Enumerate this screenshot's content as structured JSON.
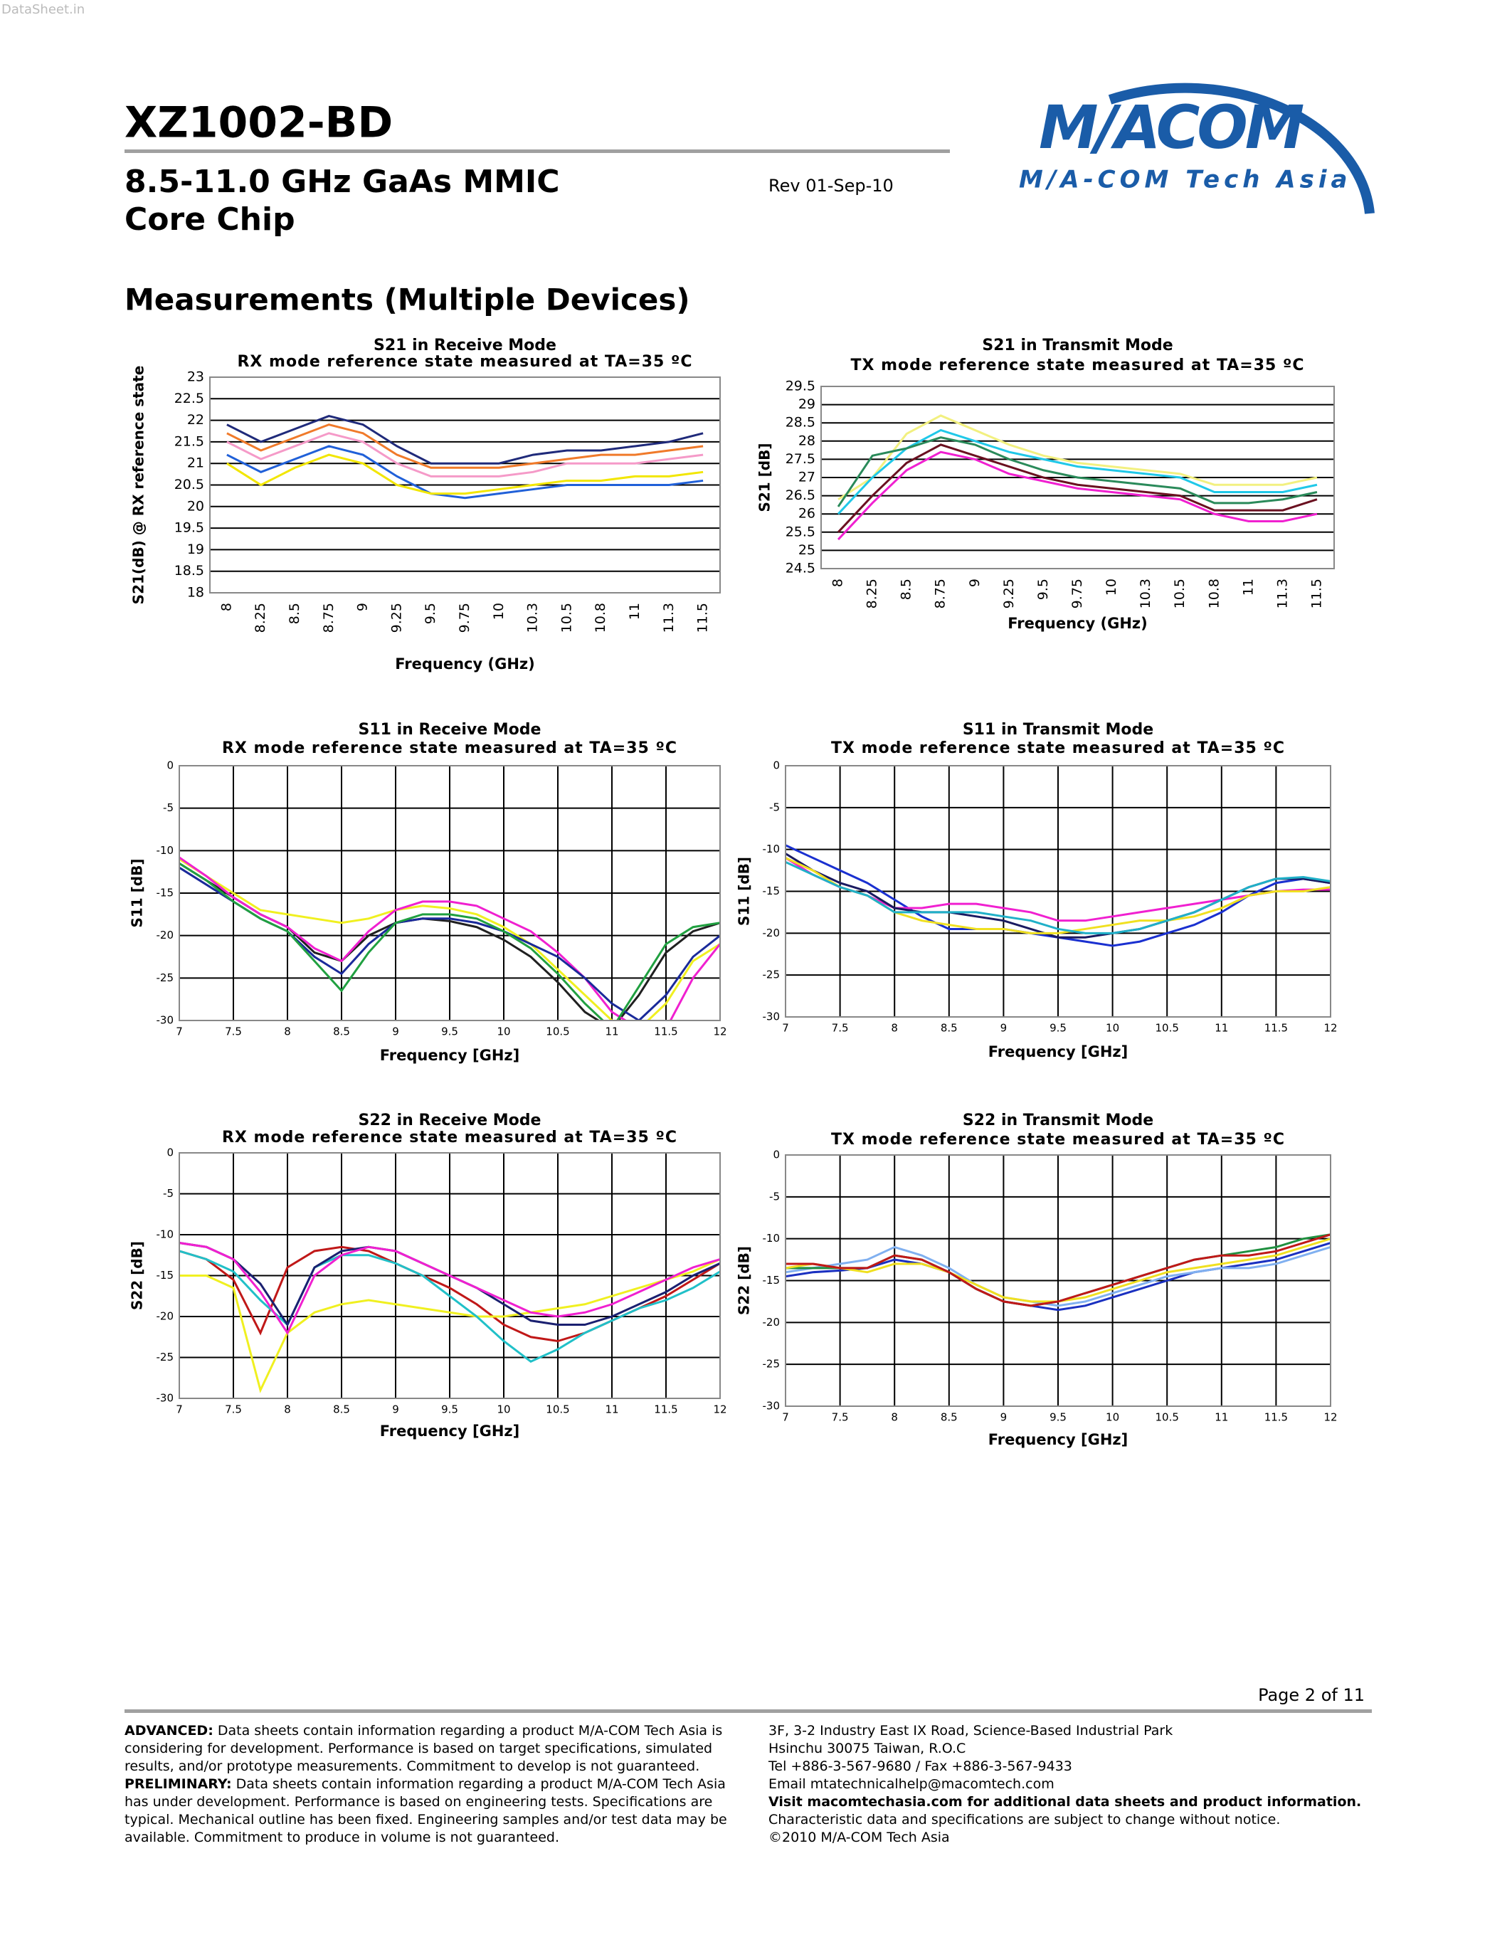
{
  "header": {
    "watermark": "DataSheet.in",
    "part_number": "XZ1002-BD",
    "subtitle_line1": "8.5-11.0 GHz GaAs MMIC",
    "subtitle_line2": "Core Chip",
    "revision": "Rev 01-Sep-10",
    "logo": "M/ACOM",
    "logo_subtitle": "M/A-COM Tech Asia"
  },
  "section_title": "Measurements (Multiple Devices)",
  "chart_data": [
    {
      "type": "line",
      "title": "S21 in Receive Mode",
      "subtitle": "RX mode reference state measured at TA=35 ºC",
      "y_label": "S21(dB) @ RX reference state",
      "x_label": "Frequency (GHz)",
      "categories": [
        "8",
        "8.25",
        "8.5",
        "8.75",
        "9",
        "9.25",
        "9.5",
        "9.75",
        "10",
        "10.3",
        "10.5",
        "10.8",
        "11",
        "11.3",
        "11.5"
      ],
      "ylim": [
        18,
        23
      ],
      "yticks": [
        18,
        18.5,
        19,
        19.5,
        20,
        20.5,
        21,
        21.5,
        22,
        22.5,
        23
      ],
      "grid": "y",
      "series": [
        {
          "color": "#1f2a7a",
          "values": [
            21.9,
            21.5,
            21.8,
            22.1,
            21.9,
            21.4,
            21.0,
            21.0,
            21.0,
            21.2,
            21.3,
            21.3,
            21.4,
            21.5,
            21.7
          ]
        },
        {
          "color": "#f07a2a",
          "values": [
            21.7,
            21.3,
            21.6,
            21.9,
            21.7,
            21.2,
            20.9,
            20.9,
            20.9,
            21.0,
            21.1,
            21.2,
            21.2,
            21.3,
            21.4
          ]
        },
        {
          "color": "#f59ac8",
          "values": [
            21.5,
            21.1,
            21.4,
            21.7,
            21.5,
            21.0,
            20.7,
            20.7,
            20.7,
            20.8,
            21.0,
            21.0,
            21.0,
            21.1,
            21.2
          ]
        },
        {
          "color": "#2060d8",
          "values": [
            21.2,
            20.8,
            21.1,
            21.4,
            21.2,
            20.7,
            20.3,
            20.2,
            20.3,
            20.4,
            20.5,
            20.5,
            20.5,
            20.5,
            20.6
          ]
        },
        {
          "color": "#f2e600",
          "values": [
            21.0,
            20.5,
            20.9,
            21.2,
            21.0,
            20.5,
            20.3,
            20.3,
            20.4,
            20.5,
            20.6,
            20.6,
            20.7,
            20.7,
            20.8
          ]
        }
      ]
    },
    {
      "type": "line",
      "title": "S21 in Transmit Mode",
      "subtitle": "TX mode reference state measured at TA=35 ºC",
      "y_label": "S21 [dB]",
      "x_label": "Frequency (GHz)",
      "categories": [
        "8",
        "8.25",
        "8.5",
        "8.75",
        "9",
        "9.25",
        "9.5",
        "9.75",
        "10",
        "10.3",
        "10.5",
        "10.8",
        "11",
        "11.3",
        "11.5"
      ],
      "ylim": [
        24.5,
        29.5
      ],
      "yticks": [
        24.5,
        25,
        25.5,
        26,
        26.5,
        27,
        27.5,
        28,
        28.5,
        29,
        29.5
      ],
      "grid": "y",
      "series": [
        {
          "color": "#f2f080",
          "values": [
            26.4,
            27.0,
            28.2,
            28.7,
            28.3,
            27.9,
            27.6,
            27.4,
            27.3,
            27.2,
            27.1,
            26.8,
            26.8,
            26.8,
            27.0
          ]
        },
        {
          "color": "#20c8e8",
          "values": [
            26.0,
            27.0,
            27.8,
            28.3,
            28.0,
            27.7,
            27.5,
            27.3,
            27.2,
            27.1,
            27.0,
            26.6,
            26.6,
            26.6,
            26.8
          ]
        },
        {
          "color": "#2a8a5a",
          "values": [
            26.2,
            27.6,
            27.8,
            28.1,
            27.9,
            27.5,
            27.2,
            27.0,
            26.9,
            26.8,
            26.7,
            26.3,
            26.3,
            26.4,
            26.6
          ]
        },
        {
          "color": "#6a1020",
          "values": [
            25.5,
            26.5,
            27.4,
            27.9,
            27.6,
            27.3,
            27.0,
            26.8,
            26.7,
            26.6,
            26.5,
            26.1,
            26.1,
            26.1,
            26.4
          ]
        },
        {
          "color": "#f020d0",
          "values": [
            25.3,
            26.3,
            27.2,
            27.7,
            27.5,
            27.1,
            26.9,
            26.7,
            26.6,
            26.5,
            26.4,
            26.0,
            25.8,
            25.8,
            26.0
          ]
        }
      ]
    },
    {
      "type": "line",
      "title": "S11 in Receive Mode",
      "subtitle": "RX mode reference state measured at TA=35 ºC",
      "y_label": "S11 [dB]",
      "x_label": "Frequency [GHz]",
      "x": [
        7,
        7.25,
        7.5,
        7.75,
        8,
        8.25,
        8.5,
        8.75,
        9,
        9.25,
        9.5,
        9.75,
        10,
        10.25,
        10.5,
        10.75,
        11,
        11.25,
        11.5,
        11.75,
        12
      ],
      "xlim": [
        7,
        12
      ],
      "xticks": [
        7,
        7.5,
        8,
        8.5,
        9,
        9.5,
        10,
        10.5,
        11,
        11.5,
        12
      ],
      "ylim": [
        -30,
        0
      ],
      "yticks": [
        0,
        -5,
        -10,
        -15,
        -20,
        -25,
        -30
      ],
      "grid": "both",
      "series": [
        {
          "color": "#202020",
          "values": [
            -11.5,
            -13.5,
            -15.5,
            -17.5,
            -19,
            -22,
            -23,
            -20,
            -18.5,
            -18,
            -18.3,
            -19,
            -20.5,
            -22.5,
            -25.5,
            -29,
            -31,
            -27,
            -22,
            -19.5,
            -18.5
          ]
        },
        {
          "color": "#f0f020",
          "values": [
            -11,
            -13,
            -15,
            -17,
            -17.5,
            -18,
            -18.5,
            -18,
            -17,
            -16.5,
            -16.8,
            -17.5,
            -19,
            -21,
            -24,
            -27,
            -30,
            -31,
            -28,
            -23,
            -21
          ]
        },
        {
          "color": "#f020d0",
          "values": [
            -10.8,
            -13,
            -15.5,
            -17.5,
            -19,
            -21.5,
            -23,
            -19.5,
            -17,
            -16,
            -16,
            -16.5,
            -18,
            -19.5,
            -22,
            -25,
            -29,
            -31,
            -31,
            -25,
            -21
          ]
        },
        {
          "color": "#1a2a9a",
          "values": [
            -12,
            -14,
            -16,
            -18,
            -19.5,
            -22.5,
            -24.5,
            -21,
            -18.5,
            -18,
            -18,
            -18.5,
            -19.5,
            -21,
            -22.5,
            -25,
            -28,
            -30,
            -27,
            -22.5,
            -20
          ]
        },
        {
          "color": "#20a040",
          "values": [
            -11.5,
            -13.5,
            -16,
            -18,
            -19.5,
            -23,
            -26.5,
            -22,
            -18.5,
            -17.5,
            -17.5,
            -18,
            -19.5,
            -21.5,
            -24.5,
            -28,
            -31,
            -26,
            -21,
            -19,
            -18.5
          ]
        }
      ]
    },
    {
      "type": "line",
      "title": "S11 in Transmit Mode",
      "subtitle": "TX mode reference state measured at TA=35 ºC",
      "y_label": "S11 [dB]",
      "x_label": "Frequency [GHz]",
      "x": [
        7,
        7.25,
        7.5,
        7.75,
        8,
        8.25,
        8.5,
        8.75,
        9,
        9.25,
        9.5,
        9.75,
        10,
        10.25,
        10.5,
        10.75,
        11,
        11.25,
        11.5,
        11.75,
        12
      ],
      "xlim": [
        7,
        12
      ],
      "xticks": [
        7,
        7.5,
        8,
        8.5,
        9,
        9.5,
        10,
        10.5,
        11,
        11.5,
        12
      ],
      "ylim": [
        -30,
        0
      ],
      "yticks": [
        0,
        -5,
        -10,
        -15,
        -20,
        -25,
        -30
      ],
      "grid": "both",
      "series": [
        {
          "color": "#1a30d0",
          "values": [
            -9.5,
            -11,
            -12.5,
            -14,
            -16,
            -18,
            -19.5,
            -19.5,
            -19.5,
            -20,
            -20.5,
            -21,
            -21.5,
            -21,
            -20,
            -19,
            -17.5,
            -15.5,
            -14,
            -13.5,
            -14
          ]
        },
        {
          "color": "#f020d0",
          "values": [
            -11,
            -13,
            -14.5,
            -15.5,
            -17,
            -17,
            -16.5,
            -16.5,
            -17,
            -17.5,
            -18.5,
            -18.5,
            -18,
            -17.5,
            -17,
            -16.5,
            -16,
            -15.5,
            -15,
            -14.8,
            -14.8
          ]
        },
        {
          "color": "#1a1a60",
          "values": [
            -10.5,
            -12.5,
            -14,
            -15,
            -17,
            -17.5,
            -17.5,
            -18,
            -18.5,
            -19.5,
            -20.5,
            -20.5,
            -20,
            -19.5,
            -18.5,
            -17.5,
            -16,
            -14.5,
            -13.5,
            -13.5,
            -14
          ]
        },
        {
          "color": "#f0e020",
          "values": [
            -11,
            -12.5,
            -14.5,
            -15.5,
            -17.5,
            -18.5,
            -19,
            -19.5,
            -19.5,
            -20,
            -20,
            -19.5,
            -19,
            -18.5,
            -18.5,
            -18,
            -17,
            -15.5,
            -15,
            -15,
            -14.5
          ]
        },
        {
          "color": "#20b0c8",
          "values": [
            -11.5,
            -13,
            -14.5,
            -15.5,
            -17.5,
            -17.5,
            -17.5,
            -17.5,
            -18,
            -18.5,
            -19.5,
            -20,
            -20,
            -19.5,
            -18.5,
            -17.5,
            -16,
            -14.5,
            -13.5,
            -13.3,
            -13.8
          ]
        }
      ]
    },
    {
      "type": "line",
      "title": "S22 in Receive Mode",
      "subtitle": "RX mode reference state measured at TA=35 ºC",
      "y_label": "S22 [dB]",
      "x_label": "Frequency [GHz]",
      "x": [
        7,
        7.25,
        7.5,
        7.75,
        8,
        8.25,
        8.5,
        8.75,
        9,
        9.25,
        9.5,
        9.75,
        10,
        10.25,
        10.5,
        10.75,
        11,
        11.25,
        11.5,
        11.75,
        12
      ],
      "xlim": [
        7,
        12
      ],
      "xticks": [
        7,
        7.5,
        8,
        8.5,
        9,
        9.5,
        10,
        10.5,
        11,
        11.5,
        12
      ],
      "ylim": [
        -30,
        0
      ],
      "yticks": [
        0,
        -5,
        -10,
        -15,
        -20,
        -25,
        -30
      ],
      "grid": "both",
      "series": [
        {
          "color": "#c01818",
          "values": [
            -12,
            -13,
            -15.5,
            -22,
            -14,
            -12,
            -11.5,
            -12,
            -13.5,
            -15,
            -16.5,
            -18.5,
            -21,
            -22.5,
            -23,
            -22,
            -20.5,
            -19,
            -17.5,
            -15.5,
            -13.5
          ]
        },
        {
          "color": "#f0f020",
          "values": [
            -15,
            -15,
            -16.5,
            -29,
            -22,
            -19.5,
            -18.5,
            -18,
            -18.5,
            -19,
            -19.5,
            -20,
            -20,
            -19.5,
            -19,
            -18.5,
            -17.5,
            -16.5,
            -15.5,
            -14.5,
            -13
          ]
        },
        {
          "color": "#20c0c8",
          "values": [
            -12,
            -13,
            -14.5,
            -18,
            -21,
            -14,
            -12.5,
            -12.5,
            -13.5,
            -15,
            -17.5,
            -20,
            -23,
            -25.5,
            -24,
            -22,
            -20.5,
            -19,
            -18,
            -16.5,
            -14.5
          ]
        },
        {
          "color": "#1a2070",
          "values": [
            -11,
            -11.5,
            -13,
            -16,
            -21,
            -14,
            -12,
            -11.5,
            -12,
            -13.5,
            -15,
            -16.5,
            -18.5,
            -20.5,
            -21,
            -21,
            -20,
            -18.5,
            -17,
            -15,
            -13.5
          ]
        },
        {
          "color": "#f020d0",
          "values": [
            -11,
            -11.5,
            -13,
            -17,
            -22,
            -15,
            -12.5,
            -11.5,
            -12,
            -13.5,
            -15,
            -16.5,
            -18,
            -19.5,
            -20,
            -19.5,
            -18.5,
            -17,
            -15.5,
            -14,
            -13
          ]
        }
      ]
    },
    {
      "type": "line",
      "title": "S22 in Transmit Mode",
      "subtitle": "TX mode reference state measured at TA=35 ºC",
      "y_label": "S22 [dB]",
      "x_label": "Frequency [GHz]",
      "x": [
        7,
        7.25,
        7.5,
        7.75,
        8,
        8.25,
        8.5,
        8.75,
        9,
        9.25,
        9.5,
        9.75,
        10,
        10.25,
        10.5,
        10.75,
        11,
        11.25,
        11.5,
        11.75,
        12
      ],
      "xlim": [
        7,
        12
      ],
      "xticks": [
        7,
        7.5,
        8,
        8.5,
        9,
        9.5,
        10,
        10.5,
        11,
        11.5,
        12
      ],
      "ylim": [
        -30,
        0
      ],
      "yticks": [
        0,
        -5,
        -10,
        -15,
        -20,
        -25,
        -30
      ],
      "grid": "both",
      "series": [
        {
          "color": "#1a30c0",
          "values": [
            -14.5,
            -14,
            -13.8,
            -13.5,
            -12.5,
            -13,
            -14,
            -16,
            -17.5,
            -18,
            -18.5,
            -18,
            -17,
            -16,
            -15,
            -14,
            -13.5,
            -13,
            -12.5,
            -11.5,
            -10.5
          ]
        },
        {
          "color": "#80b0f0",
          "values": [
            -14,
            -13.5,
            -13,
            -12.5,
            -11,
            -12,
            -13.5,
            -15.5,
            -17,
            -17.5,
            -18,
            -17.5,
            -16.5,
            -15.5,
            -14.5,
            -14,
            -13.5,
            -13.5,
            -13,
            -12,
            -11
          ]
        },
        {
          "color": "#209040",
          "values": [
            -13.5,
            -13.5,
            -13.5,
            -13.5,
            -12,
            -12.5,
            -14,
            -16,
            -17.5,
            -18,
            -17.5,
            -16.5,
            -15.5,
            -14.5,
            -13.5,
            -12.5,
            -12,
            -11.5,
            -11,
            -10,
            -9.5
          ]
        },
        {
          "color": "#f0e020",
          "values": [
            -13.5,
            -13,
            -13.5,
            -14,
            -13,
            -13,
            -14,
            -15.5,
            -17,
            -17.5,
            -17.5,
            -17,
            -16,
            -15,
            -14,
            -13.5,
            -13,
            -12.5,
            -12,
            -11,
            -10
          ]
        },
        {
          "color": "#c01818",
          "values": [
            -13,
            -13,
            -13.5,
            -13.5,
            -12,
            -12.5,
            -14,
            -16,
            -17.5,
            -18,
            -17.5,
            -16.5,
            -15.5,
            -14.5,
            -13.5,
            -12.5,
            -12,
            -12,
            -11.5,
            -10.5,
            -9.5
          ]
        }
      ]
    }
  ],
  "footer": {
    "page": "Page 2 of 11",
    "advanced_label": "ADVANCED:",
    "advanced_text": "Data sheets contain information regarding a product M/A-COM Tech Asia is considering for development. Performance is based on target specifications, simulated results, and/or prototype measurements. Commitment to develop is not guaranteed.",
    "preliminary_label": "PRELIMINARY:",
    "preliminary_text": "Data sheets contain information regarding a product M/A-COM Tech Asia has under development. Performance is based on engineering tests. Specifications are typical. Mechanical outline has been fixed. Engineering samples and/or test data may be available. Commitment to produce in volume is not guaranteed.",
    "address": [
      "3F, 3-2 Industry East IX Road, Science-Based Industrial Park",
      "Hsinchu 30075 Taiwan, R.O.C",
      "Tel +886-3-567-9680 / Fax +886-3-567-9433",
      "Email mtatechnicalhelp@macomtech.com"
    ],
    "visit": "Visit macomtechasia.com for additional data sheets and product information.",
    "notice": "Characteristic data and specifications are subject to change without notice.",
    "copyright": "©2010 M/A-COM Tech Asia"
  }
}
